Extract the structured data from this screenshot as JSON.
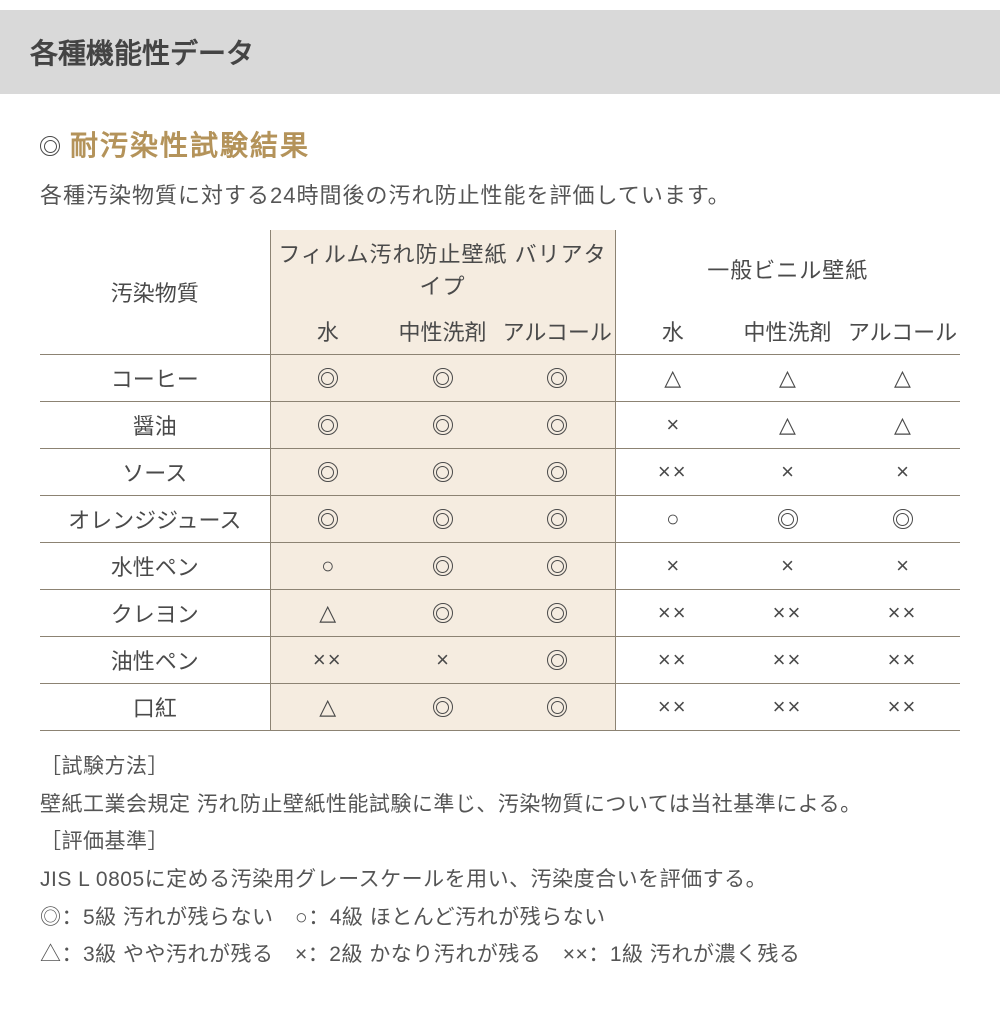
{
  "header": {
    "title": "各種機能性データ"
  },
  "section": {
    "bullet": "◎",
    "title": "耐汚染性試験結果",
    "lead": "各種汚染物質に対する24時間後の汚れ防止性能を評価しています。"
  },
  "table": {
    "row_header": "汚染物質",
    "group_a": "フィルム汚れ防止壁紙 バリアタイプ",
    "group_b": "一般ビニル壁紙",
    "subcols": [
      "水",
      "中性洗剤",
      "アルコール"
    ],
    "highlight_bg": "#f5ece0",
    "accent_color": "#b4935a",
    "border_color": "#8c8373",
    "rows": [
      {
        "label": "コーヒー",
        "a": [
          "◎",
          "◎",
          "◎"
        ],
        "b": [
          "△",
          "△",
          "△"
        ]
      },
      {
        "label": "醤油",
        "a": [
          "◎",
          "◎",
          "◎"
        ],
        "b": [
          "×",
          "△",
          "△"
        ]
      },
      {
        "label": "ソース",
        "a": [
          "◎",
          "◎",
          "◎"
        ],
        "b": [
          "××",
          "×",
          "×"
        ]
      },
      {
        "label": "オレンジジュース",
        "a": [
          "◎",
          "◎",
          "◎"
        ],
        "b": [
          "○",
          "◎",
          "◎"
        ]
      },
      {
        "label": "水性ペン",
        "a": [
          "○",
          "◎",
          "◎"
        ],
        "b": [
          "×",
          "×",
          "×"
        ]
      },
      {
        "label": "クレヨン",
        "a": [
          "△",
          "◎",
          "◎"
        ],
        "b": [
          "××",
          "××",
          "××"
        ]
      },
      {
        "label": "油性ペン",
        "a": [
          "××",
          "×",
          "◎"
        ],
        "b": [
          "××",
          "××",
          "××"
        ]
      },
      {
        "label": "口紅",
        "a": [
          "△",
          "◎",
          "◎"
        ],
        "b": [
          "××",
          "××",
          "××"
        ]
      }
    ]
  },
  "notes": {
    "l1": "［試験方法］",
    "l2": "壁紙工業会規定 汚れ防止壁紙性能試験に準じ、汚染物質については当社基準による。",
    "l3": "［評価基準］",
    "l4": "JIS L 0805に定める汚染用グレースケールを用い、汚染度合いを評価する。",
    "l5": "◎：5級 汚れが残らない　○：4級 ほとんど汚れが残らない",
    "l6": "△：3級 やや汚れが残る　×：2級 かなり汚れが残る　××：1級 汚れが濃く残る"
  }
}
